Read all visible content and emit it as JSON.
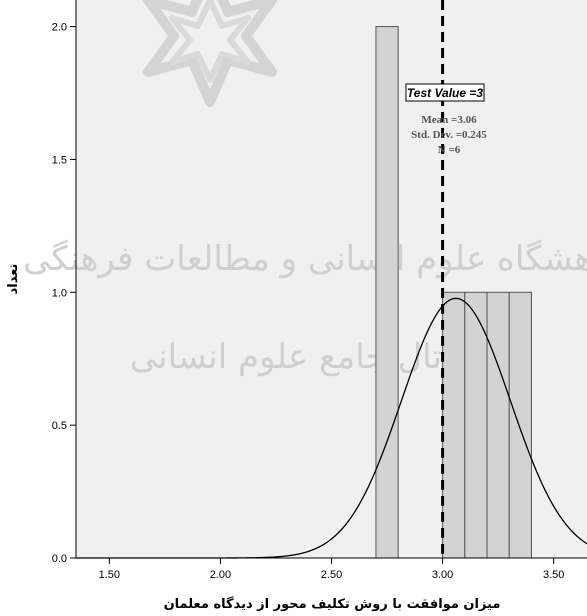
{
  "chart_data": {
    "type": "bar",
    "xlabel": "میزان موافقت با روش تکلیف محور از دیدگاه معلمان",
    "ylabel": "تعداد",
    "xlim": [
      1.35,
      3.65
    ],
    "ylim": [
      0,
      2.1
    ],
    "x_ticks": [
      {
        "value": 1.5,
        "label": "1.50"
      },
      {
        "value": 2.0,
        "label": "2.00"
      },
      {
        "value": 2.5,
        "label": "2.50"
      },
      {
        "value": 3.0,
        "label": "3.00"
      },
      {
        "value": 3.5,
        "label": "3.50"
      }
    ],
    "y_ticks": [
      {
        "value": 0.0,
        "label": "0.0"
      },
      {
        "value": 0.5,
        "label": "0.5"
      },
      {
        "value": 1.0,
        "label": "1.0"
      },
      {
        "value": 1.5,
        "label": "1.5"
      },
      {
        "value": 2.0,
        "label": "2.0"
      }
    ],
    "bins": [
      {
        "start": 2.7,
        "end": 2.8,
        "count": 2
      },
      {
        "start": 3.0,
        "end": 3.1,
        "count": 1
      },
      {
        "start": 3.1,
        "end": 3.2,
        "count": 1
      },
      {
        "start": 3.2,
        "end": 3.3,
        "count": 1
      },
      {
        "start": 3.3,
        "end": 3.4,
        "count": 1
      }
    ],
    "normal_curve": {
      "mean": 3.06,
      "sd": 0.245,
      "n": 6,
      "bin_width": 0.1
    },
    "reference_line": {
      "x": 3.0,
      "label": "Test Value =3"
    },
    "stats": {
      "mean": "Mean =3.06",
      "sd": "Std. Dev. =0.245",
      "n": "N =6"
    },
    "colors": {
      "plot_bg": "#f0f0f0",
      "bar_fill": "#d3d3d3",
      "bar_edge": "#555555",
      "curve": "#000000",
      "watermark": "#cfcfcf"
    }
  },
  "watermark": {
    "line1": "پژوهشگاه علوم انسانی و مطالعات فرهنگی",
    "line2": "پرتال جامع علوم انسانی"
  }
}
